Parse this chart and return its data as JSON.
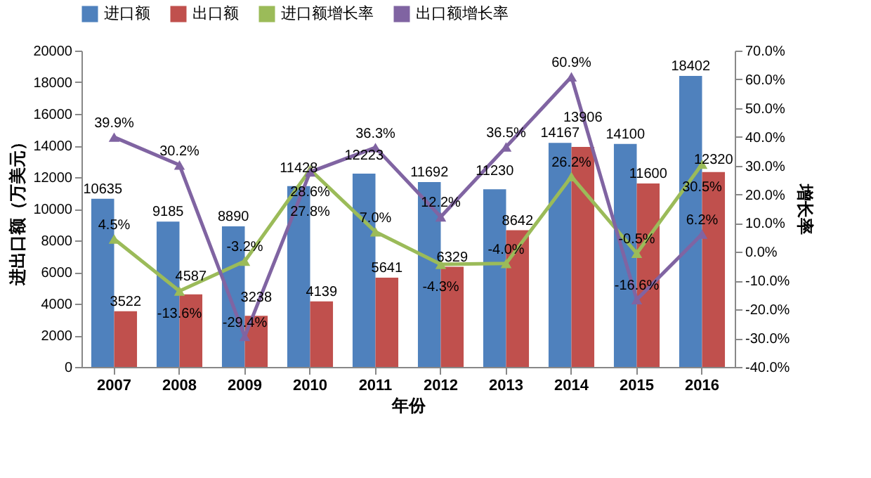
{
  "chart_data": {
    "type": "bar",
    "xlabel": "年份",
    "ylabel": "进出口额（万美元）",
    "y2label": "增长率",
    "categories": [
      "2007",
      "2008",
      "2009",
      "2010",
      "2011",
      "2012",
      "2013",
      "2014",
      "2015",
      "2016"
    ],
    "series": [
      {
        "name": "进口额",
        "color": "#4f81bd",
        "values": [
          10635,
          9185,
          8890,
          11428,
          12223,
          11692,
          11230,
          14167,
          14100,
          18402
        ]
      },
      {
        "name": "出口额",
        "color": "#c0504d",
        "values": [
          3522,
          4587,
          3238,
          4139,
          5641,
          6329,
          8642,
          13906,
          11600,
          12320
        ]
      },
      {
        "name": "进口额增长率",
        "type": "line",
        "axis": "y2",
        "color": "#9bbb59",
        "marker": "triangle",
        "values": [
          4.5,
          -13.6,
          -3.2,
          28.6,
          7.0,
          -4.3,
          -4.0,
          26.2,
          -0.5,
          30.5
        ],
        "value_labels": [
          "4.5%",
          "-13.6%",
          "-3.2%",
          "28.6%",
          "7.0%",
          "-4.3%",
          "-4.0%",
          "26.2%",
          "-0.5%",
          "30.5%"
        ]
      },
      {
        "name": "出口额增长率",
        "type": "line",
        "axis": "y2",
        "color": "#8064a2",
        "marker": "triangle",
        "values": [
          39.9,
          30.2,
          -29.4,
          27.8,
          36.3,
          12.2,
          36.5,
          60.9,
          -16.6,
          6.2
        ],
        "value_labels": [
          "39.9%",
          "30.2%",
          "-29.4%",
          "27.8%",
          "36.3%",
          "12.2%",
          "36.5%",
          "60.9%",
          "-16.6%",
          "6.2%"
        ]
      }
    ],
    "data_labels": true,
    "ylim": [
      0,
      20000
    ],
    "yticks": [
      0,
      2000,
      4000,
      6000,
      8000,
      10000,
      12000,
      14000,
      16000,
      18000,
      20000
    ],
    "y2lim": [
      -40,
      70
    ],
    "y2ticks": [
      {
        "value": -40,
        "label": "-40.0%"
      },
      {
        "value": -30,
        "label": "-30.0%"
      },
      {
        "value": -20,
        "label": "-20.0%"
      },
      {
        "value": -10,
        "label": "-10.0%"
      },
      {
        "value": 0,
        "label": "0.0%"
      },
      {
        "value": 10,
        "label": "10.0%"
      },
      {
        "value": 20,
        "label": "20.0%"
      },
      {
        "value": 30,
        "label": "30.0%"
      },
      {
        "value": 40,
        "label": "40.0%"
      },
      {
        "value": 50,
        "label": "50.0%"
      },
      {
        "value": 60,
        "label": "60.0%"
      },
      {
        "value": 70,
        "label": "70.0%"
      }
    ],
    "grid": false,
    "legend": "top"
  }
}
